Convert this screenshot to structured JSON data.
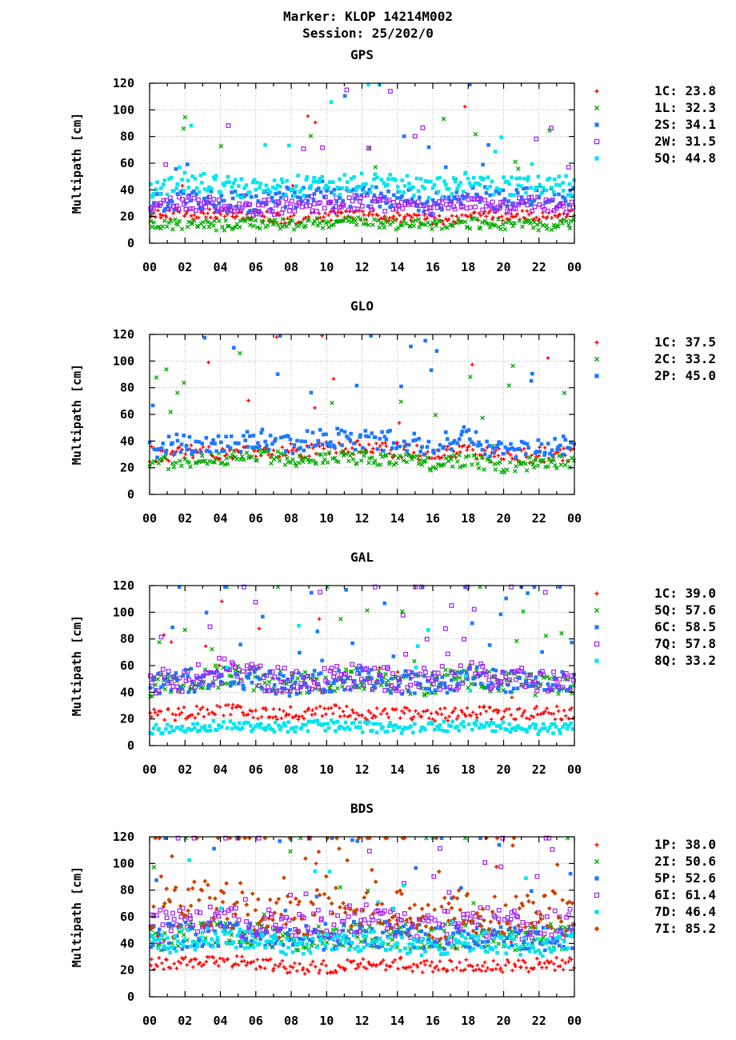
{
  "figure": {
    "title_line1": "Marker: KLOP 14214M002",
    "title_line2": "Session: 25/202/0"
  },
  "chart_data": [
    {
      "type": "scatter",
      "title": "GPS",
      "ylabel": "Multipath [cm]",
      "xlabel": "",
      "xlim": [
        0,
        24
      ],
      "ylim": [
        0,
        120
      ],
      "x_ticks": [
        "00",
        "02",
        "04",
        "06",
        "08",
        "10",
        "12",
        "14",
        "16",
        "18",
        "20",
        "22",
        "00"
      ],
      "y_ticks": [
        "0",
        "20",
        "40",
        "60",
        "80",
        "100",
        "120"
      ],
      "grid": true,
      "legend_position": "right",
      "series": [
        {
          "name": "1C",
          "value": "23.8",
          "color": "#ff0000",
          "marker": "plus",
          "base": 20,
          "spread": 4,
          "spikes": 0.03,
          "profile_hours": [
            0,
            2,
            4,
            6,
            8,
            10,
            12,
            14,
            16,
            18,
            20,
            22,
            24
          ],
          "profile_values": [
            21,
            22,
            22,
            21,
            18,
            20,
            21,
            20,
            17,
            20,
            21,
            20,
            21
          ]
        },
        {
          "name": "1L",
          "value": "32.3",
          "color": "#00aa00",
          "marker": "cross",
          "base": 14,
          "spread": 4,
          "spikes": 0.05,
          "profile_hours": [
            0,
            2,
            4,
            6,
            8,
            10,
            12,
            14,
            16,
            18,
            20,
            22,
            24
          ],
          "profile_values": [
            15,
            14,
            13,
            15,
            14,
            15,
            16,
            14,
            14,
            15,
            14,
            13,
            15
          ]
        },
        {
          "name": "2S",
          "value": "34.1",
          "color": "#1e78ff",
          "marker": "square",
          "base": 32,
          "spread": 8,
          "spikes": 0.06,
          "profile_hours": [
            0,
            2,
            4,
            6,
            8,
            10,
            12,
            14,
            16,
            18,
            20,
            22,
            24
          ],
          "profile_values": [
            30,
            34,
            32,
            30,
            35,
            33,
            36,
            34,
            30,
            38,
            32,
            36,
            34
          ]
        },
        {
          "name": "2W",
          "value": "31.5",
          "color": "#a020f0",
          "marker": "square-open",
          "base": 28,
          "spread": 6,
          "spikes": 0.05,
          "profile_hours": [
            0,
            2,
            4,
            6,
            8,
            10,
            12,
            14,
            16,
            18,
            20,
            22,
            24
          ],
          "profile_values": [
            27,
            30,
            29,
            26,
            28,
            30,
            31,
            29,
            27,
            32,
            28,
            30,
            29
          ]
        },
        {
          "name": "5Q",
          "value": "44.8",
          "color": "#00e5ee",
          "marker": "square",
          "base": 40,
          "spread": 8,
          "spikes": 0.05,
          "profile_hours": [
            0,
            2,
            4,
            6,
            8,
            10,
            12,
            14,
            16,
            18,
            20,
            22,
            24
          ],
          "profile_values": [
            40,
            45,
            44,
            40,
            43,
            42,
            46,
            44,
            40,
            46,
            42,
            44,
            42
          ]
        }
      ]
    },
    {
      "type": "scatter",
      "title": "GLO",
      "ylabel": "Multipath [cm]",
      "xlabel": "",
      "xlim": [
        0,
        24
      ],
      "ylim": [
        0,
        120
      ],
      "x_ticks": [
        "00",
        "02",
        "04",
        "06",
        "08",
        "10",
        "12",
        "14",
        "16",
        "18",
        "20",
        "22",
        "00"
      ],
      "y_ticks": [
        "0",
        "20",
        "40",
        "60",
        "80",
        "100",
        "120"
      ],
      "grid": true,
      "legend_position": "right",
      "series": [
        {
          "name": "1C",
          "value": "37.5",
          "color": "#ff0000",
          "marker": "plus",
          "base": 30,
          "spread": 6,
          "spikes": 0.05,
          "profile_hours": [
            0,
            2,
            4,
            6,
            8,
            10,
            12,
            14,
            16,
            18,
            20,
            22,
            24
          ],
          "profile_values": [
            30,
            32,
            30,
            33,
            32,
            34,
            35,
            33,
            30,
            34,
            28,
            30,
            30
          ]
        },
        {
          "name": "2C",
          "value": "33.2",
          "color": "#00aa00",
          "marker": "cross",
          "base": 25,
          "spread": 5,
          "spikes": 0.05,
          "profile_hours": [
            0,
            2,
            4,
            6,
            8,
            10,
            12,
            14,
            16,
            18,
            20,
            22,
            24
          ],
          "profile_values": [
            22,
            25,
            26,
            30,
            26,
            28,
            27,
            26,
            22,
            26,
            20,
            24,
            24
          ]
        },
        {
          "name": "2P",
          "value": "45.0",
          "color": "#1e78ff",
          "marker": "square",
          "base": 36,
          "spread": 8,
          "spikes": 0.07,
          "profile_hours": [
            0,
            2,
            4,
            6,
            8,
            10,
            12,
            14,
            16,
            18,
            20,
            22,
            24
          ],
          "profile_values": [
            35,
            38,
            36,
            42,
            38,
            42,
            40,
            40,
            36,
            44,
            30,
            36,
            36
          ]
        }
      ]
    },
    {
      "type": "scatter",
      "title": "GAL",
      "ylabel": "Multipath [cm]",
      "xlabel": "",
      "xlim": [
        0,
        24
      ],
      "ylim": [
        0,
        120
      ],
      "x_ticks": [
        "00",
        "02",
        "04",
        "06",
        "08",
        "10",
        "12",
        "14",
        "16",
        "18",
        "20",
        "22",
        "00"
      ],
      "y_ticks": [
        "0",
        "20",
        "40",
        "60",
        "80",
        "100",
        "120"
      ],
      "grid": true,
      "legend_position": "right",
      "series": [
        {
          "name": "1C",
          "value": "39.0",
          "color": "#ff0000",
          "marker": "plus",
          "base": 24,
          "spread": 5,
          "spikes": 0.05,
          "profile_hours": [
            0,
            2,
            4,
            6,
            8,
            10,
            12,
            14,
            16,
            18,
            20,
            22,
            24
          ],
          "profile_values": [
            22,
            24,
            26,
            25,
            24,
            26,
            24,
            25,
            22,
            26,
            24,
            25,
            24
          ]
        },
        {
          "name": "5Q",
          "value": "57.6",
          "color": "#00aa00",
          "marker": "cross",
          "base": 48,
          "spread": 9,
          "spikes": 0.08,
          "profile_hours": [
            0,
            2,
            4,
            6,
            8,
            10,
            12,
            14,
            16,
            18,
            20,
            22,
            24
          ],
          "profile_values": [
            44,
            48,
            52,
            50,
            46,
            48,
            50,
            48,
            46,
            52,
            48,
            46,
            48
          ]
        },
        {
          "name": "6C",
          "value": "58.5",
          "color": "#1e78ff",
          "marker": "square",
          "base": 48,
          "spread": 9,
          "spikes": 0.08,
          "profile_hours": [
            0,
            2,
            4,
            6,
            8,
            10,
            12,
            14,
            16,
            18,
            20,
            22,
            24
          ],
          "profile_values": [
            44,
            48,
            52,
            50,
            46,
            48,
            50,
            48,
            46,
            52,
            48,
            46,
            48
          ]
        },
        {
          "name": "7Q",
          "value": "57.8",
          "color": "#a020f0",
          "marker": "square-open",
          "base": 50,
          "spread": 10,
          "spikes": 0.09,
          "profile_hours": [
            0,
            2,
            4,
            6,
            8,
            10,
            12,
            14,
            16,
            18,
            20,
            22,
            24
          ],
          "profile_values": [
            46,
            50,
            56,
            52,
            48,
            50,
            52,
            50,
            48,
            54,
            50,
            48,
            50
          ]
        },
        {
          "name": "8Q",
          "value": "33.2",
          "color": "#00e5ee",
          "marker": "square",
          "base": 14,
          "spread": 4,
          "spikes": 0.06,
          "profile_hours": [
            0,
            2,
            4,
            6,
            8,
            10,
            12,
            14,
            16,
            18,
            20,
            22,
            24
          ],
          "profile_values": [
            12,
            14,
            15,
            13,
            14,
            15,
            14,
            13,
            14,
            15,
            14,
            12,
            14
          ]
        }
      ]
    },
    {
      "type": "scatter",
      "title": "BDS",
      "ylabel": "Multipath [cm]",
      "xlabel": "",
      "xlim": [
        0,
        24
      ],
      "ylim": [
        0,
        120
      ],
      "x_ticks": [
        "00",
        "02",
        "04",
        "06",
        "08",
        "10",
        "12",
        "14",
        "16",
        "18",
        "20",
        "22",
        "00"
      ],
      "y_ticks": [
        "0",
        "20",
        "40",
        "60",
        "80",
        "100",
        "120"
      ],
      "grid": true,
      "legend_position": "right",
      "series": [
        {
          "name": "1P",
          "value": "38.0",
          "color": "#ff0000",
          "marker": "plus",
          "base": 25,
          "spread": 5,
          "spikes": 0.03,
          "profile_hours": [
            0,
            2,
            4,
            6,
            8,
            10,
            12,
            14,
            16,
            18,
            20,
            22,
            24
          ],
          "profile_values": [
            24,
            25,
            26,
            25,
            22,
            22,
            24,
            25,
            22,
            24,
            23,
            24,
            25
          ]
        },
        {
          "name": "2I",
          "value": "50.6",
          "color": "#00aa00",
          "marker": "cross",
          "base": 45,
          "spread": 10,
          "spikes": 0.06,
          "profile_hours": [
            0,
            2,
            4,
            6,
            8,
            10,
            12,
            14,
            16,
            18,
            20,
            22,
            24
          ],
          "profile_values": [
            44,
            46,
            48,
            46,
            44,
            45,
            48,
            46,
            44,
            46,
            45,
            44,
            46
          ]
        },
        {
          "name": "5P",
          "value": "52.6",
          "color": "#1e78ff",
          "marker": "square",
          "base": 46,
          "spread": 10,
          "spikes": 0.06,
          "profile_hours": [
            0,
            2,
            4,
            6,
            8,
            10,
            12,
            14,
            16,
            18,
            20,
            22,
            24
          ],
          "profile_values": [
            44,
            46,
            48,
            46,
            44,
            45,
            48,
            46,
            44,
            46,
            45,
            44,
            46
          ]
        },
        {
          "name": "6I",
          "value": "61.4",
          "color": "#a020f0",
          "marker": "square-open",
          "base": 55,
          "spread": 12,
          "spikes": 0.1,
          "profile_hours": [
            0,
            2,
            4,
            6,
            8,
            10,
            12,
            14,
            16,
            18,
            20,
            22,
            24
          ],
          "profile_values": [
            52,
            56,
            58,
            56,
            52,
            54,
            58,
            56,
            52,
            56,
            54,
            52,
            56
          ]
        },
        {
          "name": "7D",
          "value": "46.4",
          "color": "#00e5ee",
          "marker": "square",
          "base": 40,
          "spread": 8,
          "spikes": 0.05,
          "profile_hours": [
            0,
            2,
            4,
            6,
            8,
            10,
            12,
            14,
            16,
            18,
            20,
            22,
            24
          ],
          "profile_values": [
            40,
            42,
            44,
            42,
            38,
            40,
            42,
            40,
            38,
            42,
            40,
            38,
            40
          ]
        },
        {
          "name": "7I",
          "value": "85.2",
          "color": "#cc4400",
          "marker": "diamond",
          "base": 65,
          "spread": 18,
          "spikes": 0.15,
          "profile_hours": [
            0,
            2,
            4,
            6,
            8,
            10,
            12,
            14,
            16,
            18,
            20,
            22,
            24
          ],
          "profile_values": [
            62,
            68,
            70,
            66,
            60,
            64,
            70,
            66,
            60,
            66,
            62,
            60,
            64
          ]
        }
      ]
    }
  ]
}
